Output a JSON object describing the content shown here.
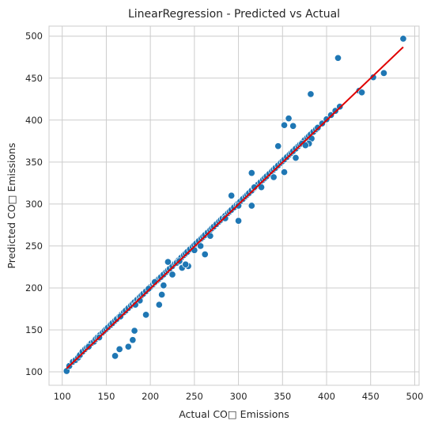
{
  "chart_data": {
    "type": "scatter",
    "title": "LinearRegression - Predicted vs Actual",
    "xlabel": "Actual CO□ Emissions",
    "ylabel": "Predicted CO□ Emissions",
    "xlim": [
      85,
      505
    ],
    "ylim": [
      84,
      512
    ],
    "xticks": [
      100,
      150,
      200,
      250,
      300,
      350,
      400,
      450,
      500
    ],
    "yticks": [
      100,
      150,
      200,
      250,
      300,
      350,
      400,
      450,
      500
    ],
    "grid": true,
    "colors": {
      "points": "#1f77b4",
      "point_edge": "#ffffff",
      "fit_line": "#e00000",
      "grid": "#cccccc",
      "frame": "#cccccc"
    },
    "fit_line": {
      "x": [
        105,
        487
      ],
      "y": [
        104,
        487
      ]
    },
    "points": {
      "x": [
        105,
        108,
        112,
        115,
        118,
        120,
        123,
        126,
        128,
        130,
        133,
        136,
        138,
        140,
        143,
        146,
        148,
        150,
        152,
        155,
        157,
        160,
        162,
        165,
        167,
        170,
        172,
        175,
        178,
        180,
        182,
        185,
        188,
        190,
        192,
        195,
        198,
        200,
        203,
        205,
        208,
        210,
        212,
        215,
        218,
        220,
        222,
        225,
        228,
        230,
        232,
        235,
        238,
        240,
        242,
        245,
        248,
        250,
        252,
        255,
        258,
        260,
        262,
        265,
        268,
        270,
        272,
        275,
        278,
        280,
        282,
        285,
        288,
        290,
        292,
        295,
        298,
        300,
        302,
        305,
        308,
        310,
        312,
        315,
        318,
        320,
        322,
        325,
        328,
        330,
        332,
        335,
        338,
        340,
        342,
        345,
        348,
        350,
        352,
        355,
        358,
        360,
        362,
        365,
        368,
        370,
        372,
        375,
        378,
        380,
        382,
        385,
        388,
        390,
        395,
        400,
        405,
        410,
        415,
        437,
        440,
        453,
        465,
        487,
        413,
        382,
        357,
        362,
        352,
        345,
        160,
        165,
        175,
        180,
        182,
        195,
        188,
        210,
        213,
        215,
        220,
        236,
        243,
        285,
        300,
        315,
        230,
        225,
        240,
        262,
        292,
        315,
        326,
        372,
        383,
        380,
        376,
        365,
        340,
        352,
        318,
        300,
        268,
        257,
        250,
        233,
        205,
        198,
        183,
        166,
        142,
        130
      ],
      "y": [
        101,
        107,
        112,
        114,
        117,
        120,
        124,
        127,
        129,
        131,
        134,
        136,
        139,
        141,
        144,
        147,
        149,
        151,
        153,
        156,
        158,
        161,
        163,
        166,
        168,
        171,
        173,
        176,
        179,
        181,
        183,
        186,
        189,
        191,
        193,
        196,
        199,
        201,
        204,
        206,
        209,
        211,
        213,
        216,
        219,
        221,
        223,
        226,
        229,
        231,
        233,
        236,
        239,
        241,
        243,
        246,
        249,
        251,
        253,
        256,
        259,
        261,
        263,
        266,
        269,
        271,
        273,
        276,
        279,
        281,
        283,
        286,
        289,
        291,
        293,
        296,
        299,
        301,
        303,
        306,
        309,
        311,
        313,
        316,
        319,
        321,
        323,
        326,
        329,
        331,
        333,
        336,
        339,
        341,
        343,
        346,
        349,
        351,
        353,
        356,
        359,
        361,
        363,
        366,
        369,
        371,
        373,
        376,
        379,
        381,
        383,
        386,
        389,
        391,
        396,
        401,
        406,
        411,
        416,
        435,
        433,
        451,
        456,
        497,
        474,
        431,
        402,
        393,
        394,
        369,
        119,
        127,
        130,
        138,
        149,
        168,
        185,
        180,
        192,
        203,
        231,
        224,
        226,
        283,
        280,
        298,
        230,
        216,
        228,
        240,
        310,
        337,
        320,
        372,
        378,
        372,
        370,
        355,
        332,
        338,
        320,
        298,
        262,
        250,
        245,
        232,
        207,
        199,
        180,
        166,
        141,
        130
      ]
    }
  }
}
